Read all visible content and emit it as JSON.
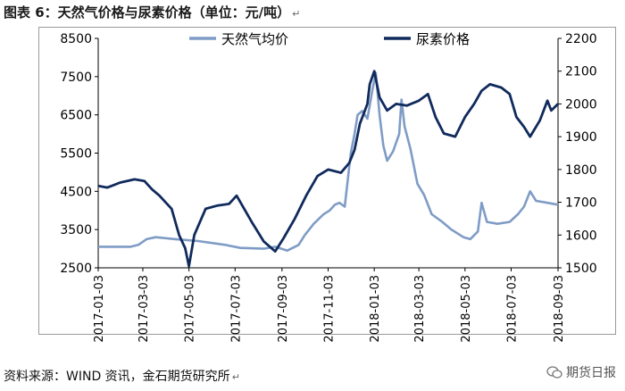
{
  "figure": {
    "title": "图表 6：天然气价格与尿素价格（单位：元/吨）",
    "source": "资料来源：WIND 资讯，金石期货研究所",
    "paragraph_mark": "↵",
    "watermark": "期货日报"
  },
  "colors": {
    "natgas": "#7f9cc6",
    "urea": "#102a5c",
    "axis": "#000000",
    "frame": "#9a9a9a"
  },
  "chart_data": {
    "type": "line",
    "title": "",
    "xlabel": "",
    "ylabel": "",
    "y_left": {
      "min": 2500,
      "max": 8500,
      "ticks": [
        2500,
        3500,
        4500,
        5500,
        6500,
        7500,
        8500
      ]
    },
    "y_right": {
      "min": 1500,
      "max": 2200,
      "ticks": [
        1500,
        1600,
        1700,
        1800,
        1900,
        2000,
        2100,
        2200
      ]
    },
    "x_range": [
      "2017-01-03",
      "2018-09-03"
    ],
    "x_ticks": [
      "2017-01-03",
      "2017-03-03",
      "2017-05-03",
      "2017-07-03",
      "2017-09-03",
      "2017-11-03",
      "2018-01-03",
      "2018-03-03",
      "2018-05-03",
      "2018-07-03",
      "2018-09-03"
    ],
    "grid": false,
    "legend": "top",
    "series": [
      {
        "name": "天然气均价",
        "axis": "left",
        "points": [
          [
            "2017-01-03",
            3050
          ],
          [
            "2017-02-15",
            3050
          ],
          [
            "2017-02-25",
            3100
          ],
          [
            "2017-03-08",
            3250
          ],
          [
            "2017-03-20",
            3300
          ],
          [
            "2017-04-15",
            3250
          ],
          [
            "2017-05-15",
            3200
          ],
          [
            "2017-06-20",
            3100
          ],
          [
            "2017-07-10",
            3020
          ],
          [
            "2017-08-10",
            3000
          ],
          [
            "2017-08-25",
            3050
          ],
          [
            "2017-09-10",
            2950
          ],
          [
            "2017-09-25",
            3100
          ],
          [
            "2017-10-03",
            3350
          ],
          [
            "2017-10-15",
            3650
          ],
          [
            "2017-10-28",
            3900
          ],
          [
            "2017-11-05",
            4000
          ],
          [
            "2017-11-12",
            4150
          ],
          [
            "2017-11-18",
            4200
          ],
          [
            "2017-11-25",
            4100
          ],
          [
            "2017-12-03",
            5500
          ],
          [
            "2017-12-08",
            6000
          ],
          [
            "2017-12-12",
            6500
          ],
          [
            "2017-12-18",
            6600
          ],
          [
            "2017-12-25",
            6400
          ],
          [
            "2018-01-01",
            7200
          ],
          [
            "2018-01-05",
            7600
          ],
          [
            "2018-01-10",
            6500
          ],
          [
            "2018-01-15",
            5700
          ],
          [
            "2018-01-20",
            5300
          ],
          [
            "2018-01-28",
            5550
          ],
          [
            "2018-02-05",
            6000
          ],
          [
            "2018-02-08",
            6900
          ],
          [
            "2018-02-12",
            6200
          ],
          [
            "2018-02-20",
            5600
          ],
          [
            "2018-03-01",
            4700
          ],
          [
            "2018-03-10",
            4400
          ],
          [
            "2018-03-20",
            3900
          ],
          [
            "2018-04-03",
            3700
          ],
          [
            "2018-04-15",
            3500
          ],
          [
            "2018-05-01",
            3300
          ],
          [
            "2018-05-10",
            3250
          ],
          [
            "2018-05-20",
            3450
          ],
          [
            "2018-05-25",
            4200
          ],
          [
            "2018-06-01",
            3700
          ],
          [
            "2018-06-15",
            3650
          ],
          [
            "2018-07-01",
            3700
          ],
          [
            "2018-07-12",
            3900
          ],
          [
            "2018-07-20",
            4100
          ],
          [
            "2018-07-28",
            4500
          ],
          [
            "2018-08-05",
            4250
          ],
          [
            "2018-08-20",
            4200
          ],
          [
            "2018-09-03",
            4150
          ]
        ]
      },
      {
        "name": "尿素价格",
        "axis": "right",
        "points": [
          [
            "2017-01-03",
            1750
          ],
          [
            "2017-01-15",
            1745
          ],
          [
            "2017-02-01",
            1760
          ],
          [
            "2017-02-20",
            1770
          ],
          [
            "2017-03-05",
            1765
          ],
          [
            "2017-03-15",
            1740
          ],
          [
            "2017-03-25",
            1720
          ],
          [
            "2017-04-10",
            1680
          ],
          [
            "2017-04-20",
            1600
          ],
          [
            "2017-04-28",
            1560
          ],
          [
            "2017-05-03",
            1505
          ],
          [
            "2017-05-10",
            1600
          ],
          [
            "2017-05-25",
            1680
          ],
          [
            "2017-06-10",
            1690
          ],
          [
            "2017-06-25",
            1695
          ],
          [
            "2017-07-05",
            1720
          ],
          [
            "2017-07-15",
            1680
          ],
          [
            "2017-07-25",
            1640
          ],
          [
            "2017-08-10",
            1580
          ],
          [
            "2017-08-25",
            1550
          ],
          [
            "2017-09-05",
            1590
          ],
          [
            "2017-09-20",
            1650
          ],
          [
            "2017-10-05",
            1720
          ],
          [
            "2017-10-20",
            1780
          ],
          [
            "2017-11-03",
            1800
          ],
          [
            "2017-11-20",
            1790
          ],
          [
            "2017-12-01",
            1820
          ],
          [
            "2017-12-08",
            1860
          ],
          [
            "2017-12-15",
            1940
          ],
          [
            "2017-12-25",
            2000
          ],
          [
            "2017-12-28",
            2060
          ],
          [
            "2018-01-03",
            2100
          ],
          [
            "2018-01-10",
            2020
          ],
          [
            "2018-01-20",
            1980
          ],
          [
            "2018-02-01",
            2000
          ],
          [
            "2018-02-15",
            1995
          ],
          [
            "2018-03-03",
            2010
          ],
          [
            "2018-03-15",
            2030
          ],
          [
            "2018-03-25",
            1960
          ],
          [
            "2018-04-05",
            1910
          ],
          [
            "2018-04-20",
            1900
          ],
          [
            "2018-05-03",
            1960
          ],
          [
            "2018-05-15",
            2000
          ],
          [
            "2018-05-25",
            2040
          ],
          [
            "2018-06-05",
            2060
          ],
          [
            "2018-06-20",
            2050
          ],
          [
            "2018-07-01",
            2030
          ],
          [
            "2018-07-10",
            1960
          ],
          [
            "2018-07-20",
            1930
          ],
          [
            "2018-07-28",
            1900
          ],
          [
            "2018-08-10",
            1950
          ],
          [
            "2018-08-20",
            2010
          ],
          [
            "2018-08-25",
            1980
          ],
          [
            "2018-09-03",
            2000
          ]
        ]
      }
    ]
  }
}
